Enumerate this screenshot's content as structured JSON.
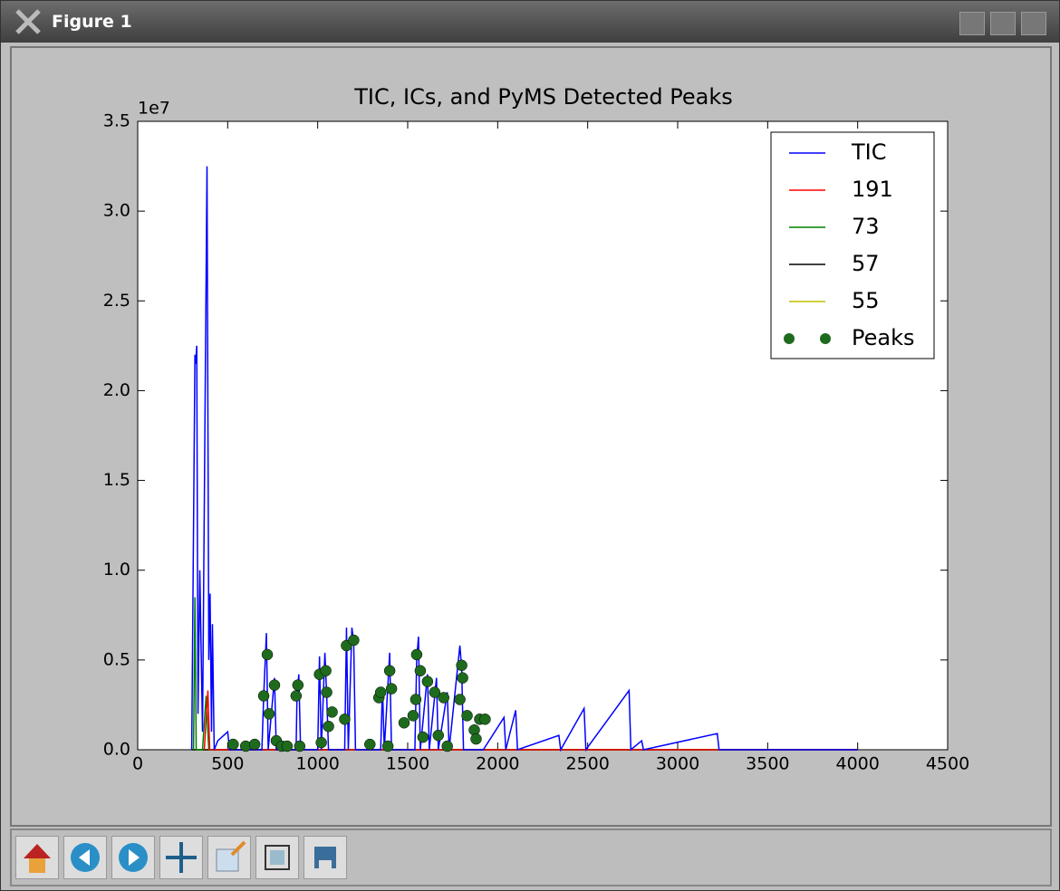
{
  "window": {
    "title": "Figure 1"
  },
  "chart_data": {
    "type": "line",
    "title": "TIC, ICs, and PyMS Detected Peaks",
    "y_offset_label": "1e7",
    "xlim": [
      0,
      4500
    ],
    "xticks": [
      0,
      500,
      1000,
      1500,
      2000,
      2500,
      3000,
      3500,
      4000,
      4500
    ],
    "ylim": [
      0,
      3.5
    ],
    "yticks": [
      {
        "value": 0,
        "label": "0.0"
      },
      0.5,
      {
        "value": 1,
        "label": "1.0"
      },
      1.5,
      {
        "value": 2,
        "label": "2.0"
      },
      2.5,
      {
        "value": 3,
        "label": "3.0"
      },
      3.5
    ],
    "legend": "upper right",
    "series": [
      {
        "name": "TIC",
        "color": "#0000ff",
        "type": "line",
        "x": [
          300,
          318,
          322,
          328,
          335,
          345,
          360,
          375,
          385,
          395,
          402,
          410,
          415,
          425,
          445,
          500,
          510,
          690,
          700,
          715,
          725,
          760,
          770,
          880,
          885,
          895,
          905,
          1000,
          1010,
          1020,
          1040,
          1050,
          1060,
          1150,
          1160,
          1170,
          1190,
          1200,
          1210,
          1350,
          1360,
          1370,
          1400,
          1410,
          1540,
          1550,
          1560,
          1570,
          1610,
          1620,
          1660,
          1670,
          1720,
          1730,
          1790,
          1800,
          1810,
          1920,
          2035,
          2045,
          2100,
          2110,
          2340,
          2350,
          2480,
          2490,
          2730,
          2740,
          2800,
          2810,
          3220,
          3230,
          4000
        ],
        "values": [
          0,
          2.2,
          2.15,
          2.25,
          0.2,
          1.0,
          0.1,
          2.0,
          3.25,
          0.5,
          0.87,
          0.1,
          0.7,
          0,
          0.05,
          0.1,
          0,
          0,
          0.3,
          0.65,
          0,
          0.4,
          0,
          0,
          0.3,
          0.42,
          0,
          0,
          0.52,
          0,
          0.54,
          0.3,
          0,
          0,
          0.68,
          0,
          0.68,
          0.6,
          0,
          0,
          0.35,
          0,
          0.54,
          0,
          0,
          0.5,
          0.63,
          0,
          0.42,
          0,
          0.4,
          0,
          0.32,
          0,
          0.58,
          0.45,
          0,
          0,
          0.18,
          0,
          0.22,
          0,
          0.08,
          0,
          0.23,
          0,
          0.33,
          0,
          0.05,
          0,
          0.09,
          0,
          0
        ]
      },
      {
        "name": "191",
        "color": "#ff0000",
        "type": "line",
        "x": [
          370,
          390,
          400,
          4000
        ],
        "values": [
          0,
          0.33,
          0,
          0
        ]
      },
      {
        "name": "73",
        "color": "#008000",
        "type": "line",
        "x": [
          310,
          318,
          325,
          360,
          380,
          395,
          4000
        ],
        "values": [
          0,
          0.85,
          0,
          0,
          0.3,
          0,
          0
        ]
      },
      {
        "name": "57",
        "color": "#000000",
        "type": "line",
        "x": [
          300,
          4000
        ],
        "values": [
          0,
          0
        ]
      },
      {
        "name": "55",
        "color": "#bfbf00",
        "type": "line",
        "x": [
          300,
          4000
        ],
        "values": [
          0,
          0
        ]
      },
      {
        "name": "Peaks",
        "color": "#1e6b1e",
        "type": "scatter",
        "x": [
          530,
          600,
          650,
          700,
          720,
          730,
          760,
          770,
          800,
          830,
          880,
          890,
          900,
          1010,
          1020,
          1045,
          1050,
          1060,
          1080,
          1150,
          1160,
          1200,
          1290,
          1340,
          1350,
          1390,
          1400,
          1410,
          1480,
          1530,
          1545,
          1550,
          1570,
          1585,
          1610,
          1650,
          1670,
          1700,
          1720,
          1790,
          1800,
          1805,
          1830,
          1870,
          1880,
          1900,
          1930
        ],
        "values": [
          0.03,
          0.02,
          0.03,
          0.3,
          0.53,
          0.2,
          0.36,
          0.05,
          0.02,
          0.02,
          0.3,
          0.36,
          0.02,
          0.42,
          0.04,
          0.44,
          0.32,
          0.13,
          0.21,
          0.17,
          0.58,
          0.61,
          0.03,
          0.29,
          0.32,
          0.02,
          0.44,
          0.34,
          0.15,
          0.19,
          0.28,
          0.53,
          0.44,
          0.07,
          0.38,
          0.32,
          0.08,
          0.29,
          0.02,
          0.28,
          0.47,
          0.4,
          0.19,
          0.11,
          0.06,
          0.17,
          0.17
        ]
      }
    ]
  }
}
